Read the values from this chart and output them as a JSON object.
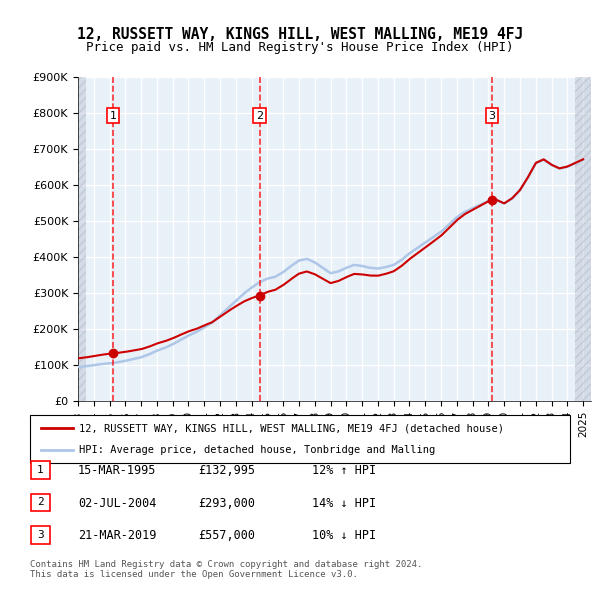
{
  "title": "12, RUSSETT WAY, KINGS HILL, WEST MALLING, ME19 4FJ",
  "subtitle": "Price paid vs. HM Land Registry's House Price Index (HPI)",
  "ylabel": "",
  "ylim": [
    0,
    900000
  ],
  "yticks": [
    0,
    100000,
    200000,
    300000,
    400000,
    500000,
    600000,
    700000,
    800000,
    900000
  ],
  "ytick_labels": [
    "£0",
    "£100K",
    "£200K",
    "£300K",
    "£400K",
    "£500K",
    "£600K",
    "£700K",
    "£800K",
    "£900K"
  ],
  "xlim_start": 1993.0,
  "xlim_end": 2025.5,
  "sale_dates": [
    1995.21,
    2004.5,
    2019.22
  ],
  "sale_prices": [
    132995,
    293000,
    557000
  ],
  "sale_labels": [
    "1",
    "2",
    "3"
  ],
  "sale_info": [
    {
      "num": "1",
      "date": "15-MAR-1995",
      "price": "£132,995",
      "hpi": "12% ↑ HPI"
    },
    {
      "num": "2",
      "date": "02-JUL-2004",
      "price": "£293,000",
      "hpi": "14% ↓ HPI"
    },
    {
      "num": "3",
      "date": "21-MAR-2019",
      "price": "£557,000",
      "hpi": "10% ↓ HPI"
    }
  ],
  "legend_line1": "12, RUSSETT WAY, KINGS HILL, WEST MALLING, ME19 4FJ (detached house)",
  "legend_line2": "HPI: Average price, detached house, Tonbridge and Malling",
  "footer": "Contains HM Land Registry data © Crown copyright and database right 2024.\nThis data is licensed under the Open Government Licence v3.0.",
  "hpi_color": "#aec6e8",
  "price_color": "#cc0000",
  "bg_color": "#dce9f5",
  "plot_bg": "#e8f0f8",
  "hatch_color": "#c0c8d8",
  "grid_color": "#ffffff"
}
